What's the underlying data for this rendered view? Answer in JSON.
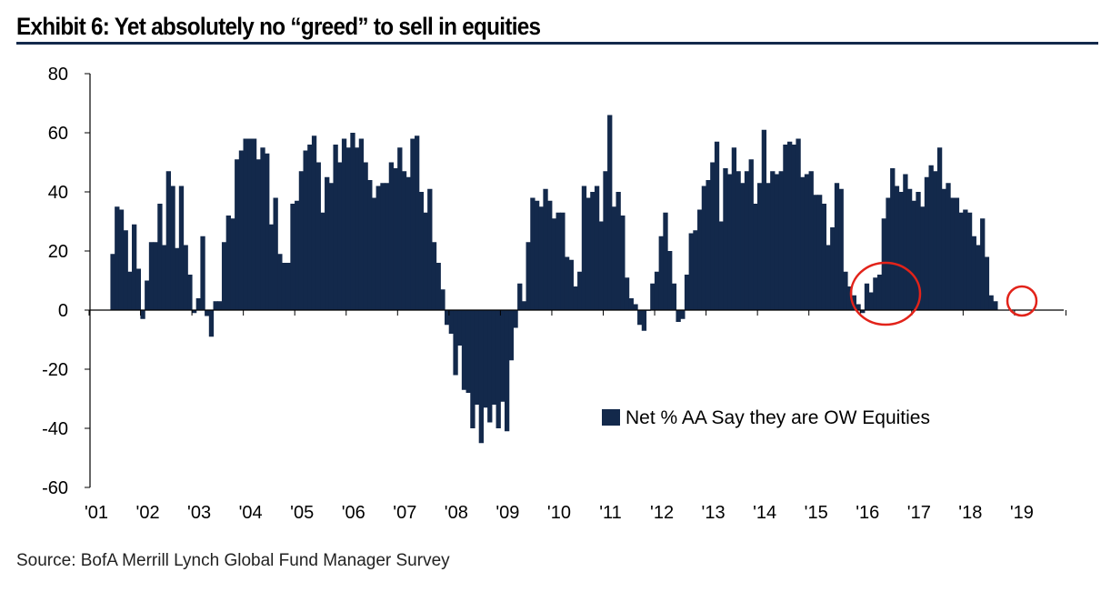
{
  "title": "Exhibit 6: Yet absolutely no “greed” to sell in equities",
  "source": "Source:  BofA Merrill Lynch Global Fund Manager Survey",
  "colors": {
    "bar": "#13294b",
    "rule": "#13294b",
    "highlight_circle": "#e2231a"
  },
  "chart_data": {
    "type": "bar",
    "title": "",
    "xlabel": "",
    "ylabel": "",
    "ylim": [
      -60,
      80
    ],
    "yticks": [
      "80",
      "60",
      "40",
      "20",
      "0",
      "-20",
      "-40",
      "-60"
    ],
    "xtick_labels": [
      "'01",
      "'02",
      "'03",
      "'04",
      "'05",
      "'06",
      "'07",
      "'08",
      "'09",
      "'10",
      "'11",
      "'12",
      "'13",
      "'14",
      "'15",
      "'16",
      "'17",
      "'18",
      "'19"
    ],
    "grid": false,
    "legend_position": "lower-right",
    "series": [
      {
        "name": "Net % AA Say they are OW Equities",
        "start": "2001-03",
        "frequency": "monthly",
        "values": [
          19,
          35,
          34,
          27,
          13,
          29,
          14,
          -3,
          10,
          23,
          23,
          36,
          22,
          47,
          42,
          21,
          42,
          22,
          12,
          -1,
          4,
          25,
          -2,
          -9,
          3,
          3,
          23,
          32,
          31,
          51,
          54,
          58,
          58,
          58,
          51,
          55,
          53,
          29,
          38,
          19,
          16,
          16,
          36,
          37,
          47,
          54,
          56,
          59,
          50,
          33,
          45,
          43,
          56,
          50,
          58,
          55,
          60,
          55,
          58,
          50,
          44,
          38,
          42,
          43,
          43,
          50,
          48,
          55,
          47,
          45,
          58,
          59,
          40,
          33,
          41,
          23,
          16,
          7,
          -5,
          -8,
          -22,
          -12,
          -27,
          -28,
          -40,
          -32,
          -45,
          -33,
          -38,
          -32,
          -40,
          -31,
          -41,
          -17,
          -6,
          9,
          3,
          23,
          38,
          37,
          35,
          41,
          37,
          31,
          33,
          33,
          18,
          17,
          8,
          13,
          42,
          38,
          40,
          42,
          30,
          47,
          66,
          35,
          40,
          32,
          11,
          4,
          2,
          -5,
          -7,
          0,
          9,
          13,
          25,
          33,
          20,
          9,
          -4,
          -3,
          12,
          26,
          27,
          34,
          42,
          44,
          50,
          57,
          30,
          48,
          46,
          55,
          47,
          43,
          47,
          51,
          36,
          43,
          61,
          43,
          47,
          46,
          47,
          56,
          57,
          56,
          58,
          45,
          46,
          47,
          39,
          39,
          36,
          22,
          28,
          43,
          41,
          13,
          8,
          5,
          2,
          -1,
          9,
          6,
          11,
          12,
          31,
          38,
          48,
          42,
          40,
          46,
          41,
          37,
          40,
          35,
          45,
          49,
          47,
          55,
          41,
          43,
          38,
          38,
          33,
          34,
          33,
          25,
          22,
          31,
          18,
          5,
          3
        ]
      }
    ],
    "annotations": [
      {
        "type": "circle",
        "around": "2016 lows"
      },
      {
        "type": "circle",
        "around": "2019 latest reading"
      }
    ]
  }
}
